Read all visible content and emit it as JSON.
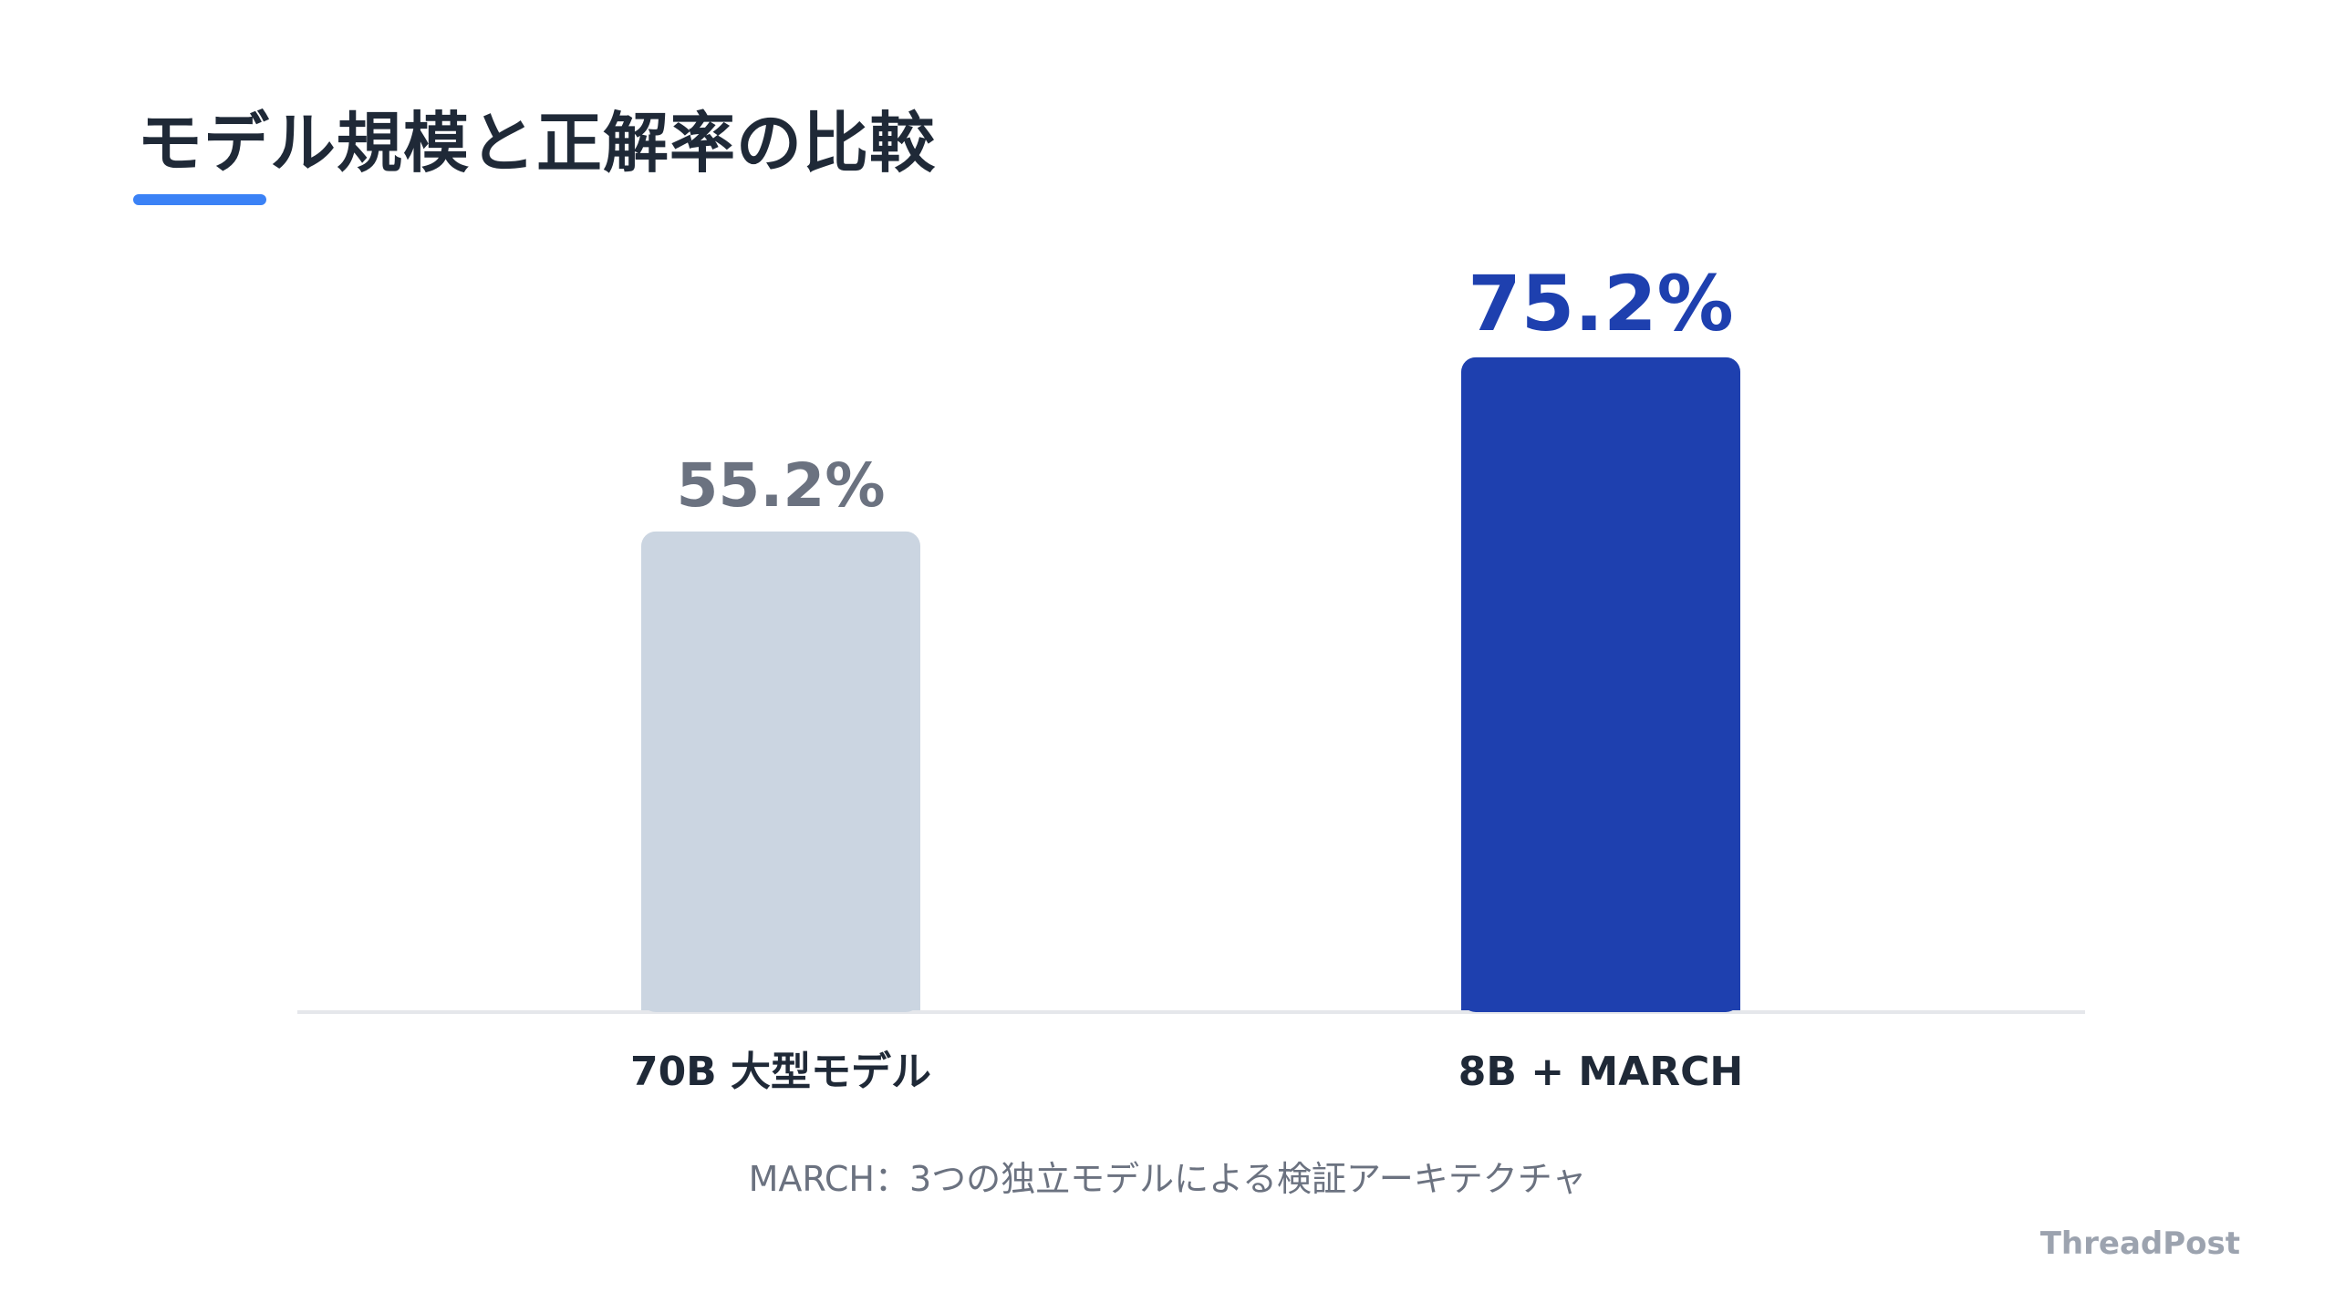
{
  "title": "モデル規模と正解率の比較",
  "caption": "MARCH：3つの独立モデルによる検証アーキテクチャ",
  "brand": "ThreadPost",
  "colors": {
    "accent": "#3b82f6",
    "bar_baseline": "#cbd5e1",
    "bar_highlight": "#1e40af",
    "label_baseline": "#6b7280",
    "label_highlight": "#1e40af",
    "text_dark": "#1f2937"
  },
  "chart_data": {
    "type": "bar",
    "categories": [
      "70B 大型モデル",
      "8B + MARCH"
    ],
    "values": [
      55.2,
      75.2
    ],
    "data_labels": [
      "55.2%",
      "75.2%"
    ],
    "ylim": [
      0,
      100
    ],
    "grid": false,
    "legend": "none"
  }
}
